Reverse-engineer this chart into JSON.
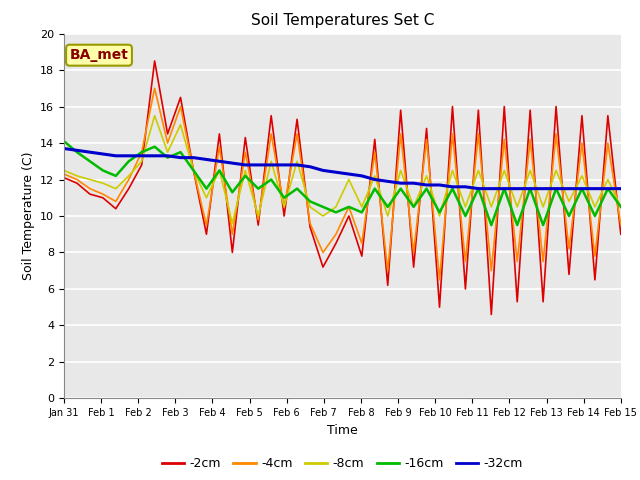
{
  "title": "Soil Temperatures Set C",
  "xlabel": "Time",
  "ylabel": "Soil Temperature (C)",
  "annotation": "BA_met",
  "ylim": [
    0,
    20
  ],
  "yticks": [
    0,
    2,
    4,
    6,
    8,
    10,
    12,
    14,
    16,
    18,
    20
  ],
  "xtick_labels": [
    "Jan 31",
    "Feb 1",
    "Feb 2",
    "Feb 3",
    "Feb 4",
    "Feb 5",
    "Feb 6",
    "Feb 7",
    "Feb 8",
    "Feb 9",
    "Feb 10",
    "Feb 11",
    "Feb 12",
    "Feb 13",
    "Feb 14",
    "Feb 15"
  ],
  "series_labels": [
    "-2cm",
    "-4cm",
    "-8cm",
    "-16cm",
    "-32cm"
  ],
  "series_colors": [
    "#dd0000",
    "#ff8800",
    "#cccc00",
    "#00bb00",
    "#0000cc"
  ],
  "background_color": "#e8e8e8",
  "t2cm": [
    12.1,
    11.8,
    11.2,
    11.0,
    10.4,
    11.5,
    12.8,
    18.5,
    14.5,
    16.5,
    12.5,
    9.0,
    14.5,
    8.0,
    14.3,
    9.5,
    15.5,
    10.0,
    15.3,
    9.4,
    7.2,
    8.5,
    10.0,
    7.8,
    14.2,
    6.2,
    15.8,
    7.2,
    14.8,
    5.0,
    16.0,
    6.0,
    15.8,
    4.6,
    16.0,
    5.3,
    15.8,
    5.3,
    16.0,
    6.8,
    15.5,
    6.5,
    15.5,
    9.0
  ],
  "t4cm": [
    12.3,
    12.0,
    11.5,
    11.2,
    10.8,
    12.0,
    13.5,
    17.0,
    14.0,
    16.0,
    12.5,
    9.5,
    13.8,
    9.0,
    13.5,
    9.8,
    14.5,
    10.5,
    14.5,
    9.6,
    8.0,
    9.0,
    10.5,
    8.5,
    13.5,
    7.0,
    14.5,
    8.0,
    14.2,
    6.5,
    14.5,
    7.5,
    14.5,
    7.0,
    14.2,
    7.5,
    14.2,
    7.5,
    14.5,
    8.2,
    14.0,
    7.8,
    14.0,
    9.5
  ],
  "t8cm": [
    12.5,
    12.2,
    12.0,
    11.8,
    11.5,
    12.2,
    13.0,
    15.5,
    13.5,
    15.0,
    12.5,
    11.0,
    12.5,
    9.6,
    12.5,
    10.0,
    13.0,
    10.5,
    13.0,
    10.5,
    10.0,
    10.5,
    12.0,
    10.5,
    12.2,
    10.0,
    12.5,
    10.5,
    12.2,
    10.0,
    12.5,
    10.5,
    12.5,
    10.5,
    12.5,
    10.5,
    12.5,
    10.5,
    12.5,
    10.8,
    12.2,
    10.5,
    12.0,
    10.5
  ],
  "t16cm": [
    14.1,
    13.5,
    13.0,
    12.5,
    12.2,
    13.0,
    13.5,
    13.8,
    13.2,
    13.5,
    12.5,
    11.5,
    12.5,
    11.3,
    12.2,
    11.5,
    12.0,
    11.0,
    11.5,
    10.8,
    10.5,
    10.2,
    10.5,
    10.2,
    11.5,
    10.5,
    11.5,
    10.5,
    11.5,
    10.2,
    11.5,
    10.0,
    11.5,
    9.5,
    11.5,
    9.5,
    11.5,
    9.5,
    11.5,
    10.0,
    11.5,
    10.0,
    11.5,
    10.5
  ],
  "t32cm": [
    13.7,
    13.6,
    13.5,
    13.4,
    13.3,
    13.3,
    13.3,
    13.3,
    13.3,
    13.2,
    13.2,
    13.1,
    13.0,
    12.9,
    12.8,
    12.8,
    12.8,
    12.8,
    12.8,
    12.7,
    12.5,
    12.4,
    12.3,
    12.2,
    12.0,
    11.9,
    11.8,
    11.8,
    11.7,
    11.7,
    11.6,
    11.6,
    11.5,
    11.5,
    11.5,
    11.5,
    11.5,
    11.5,
    11.5,
    11.5,
    11.5,
    11.5,
    11.5,
    11.5
  ]
}
